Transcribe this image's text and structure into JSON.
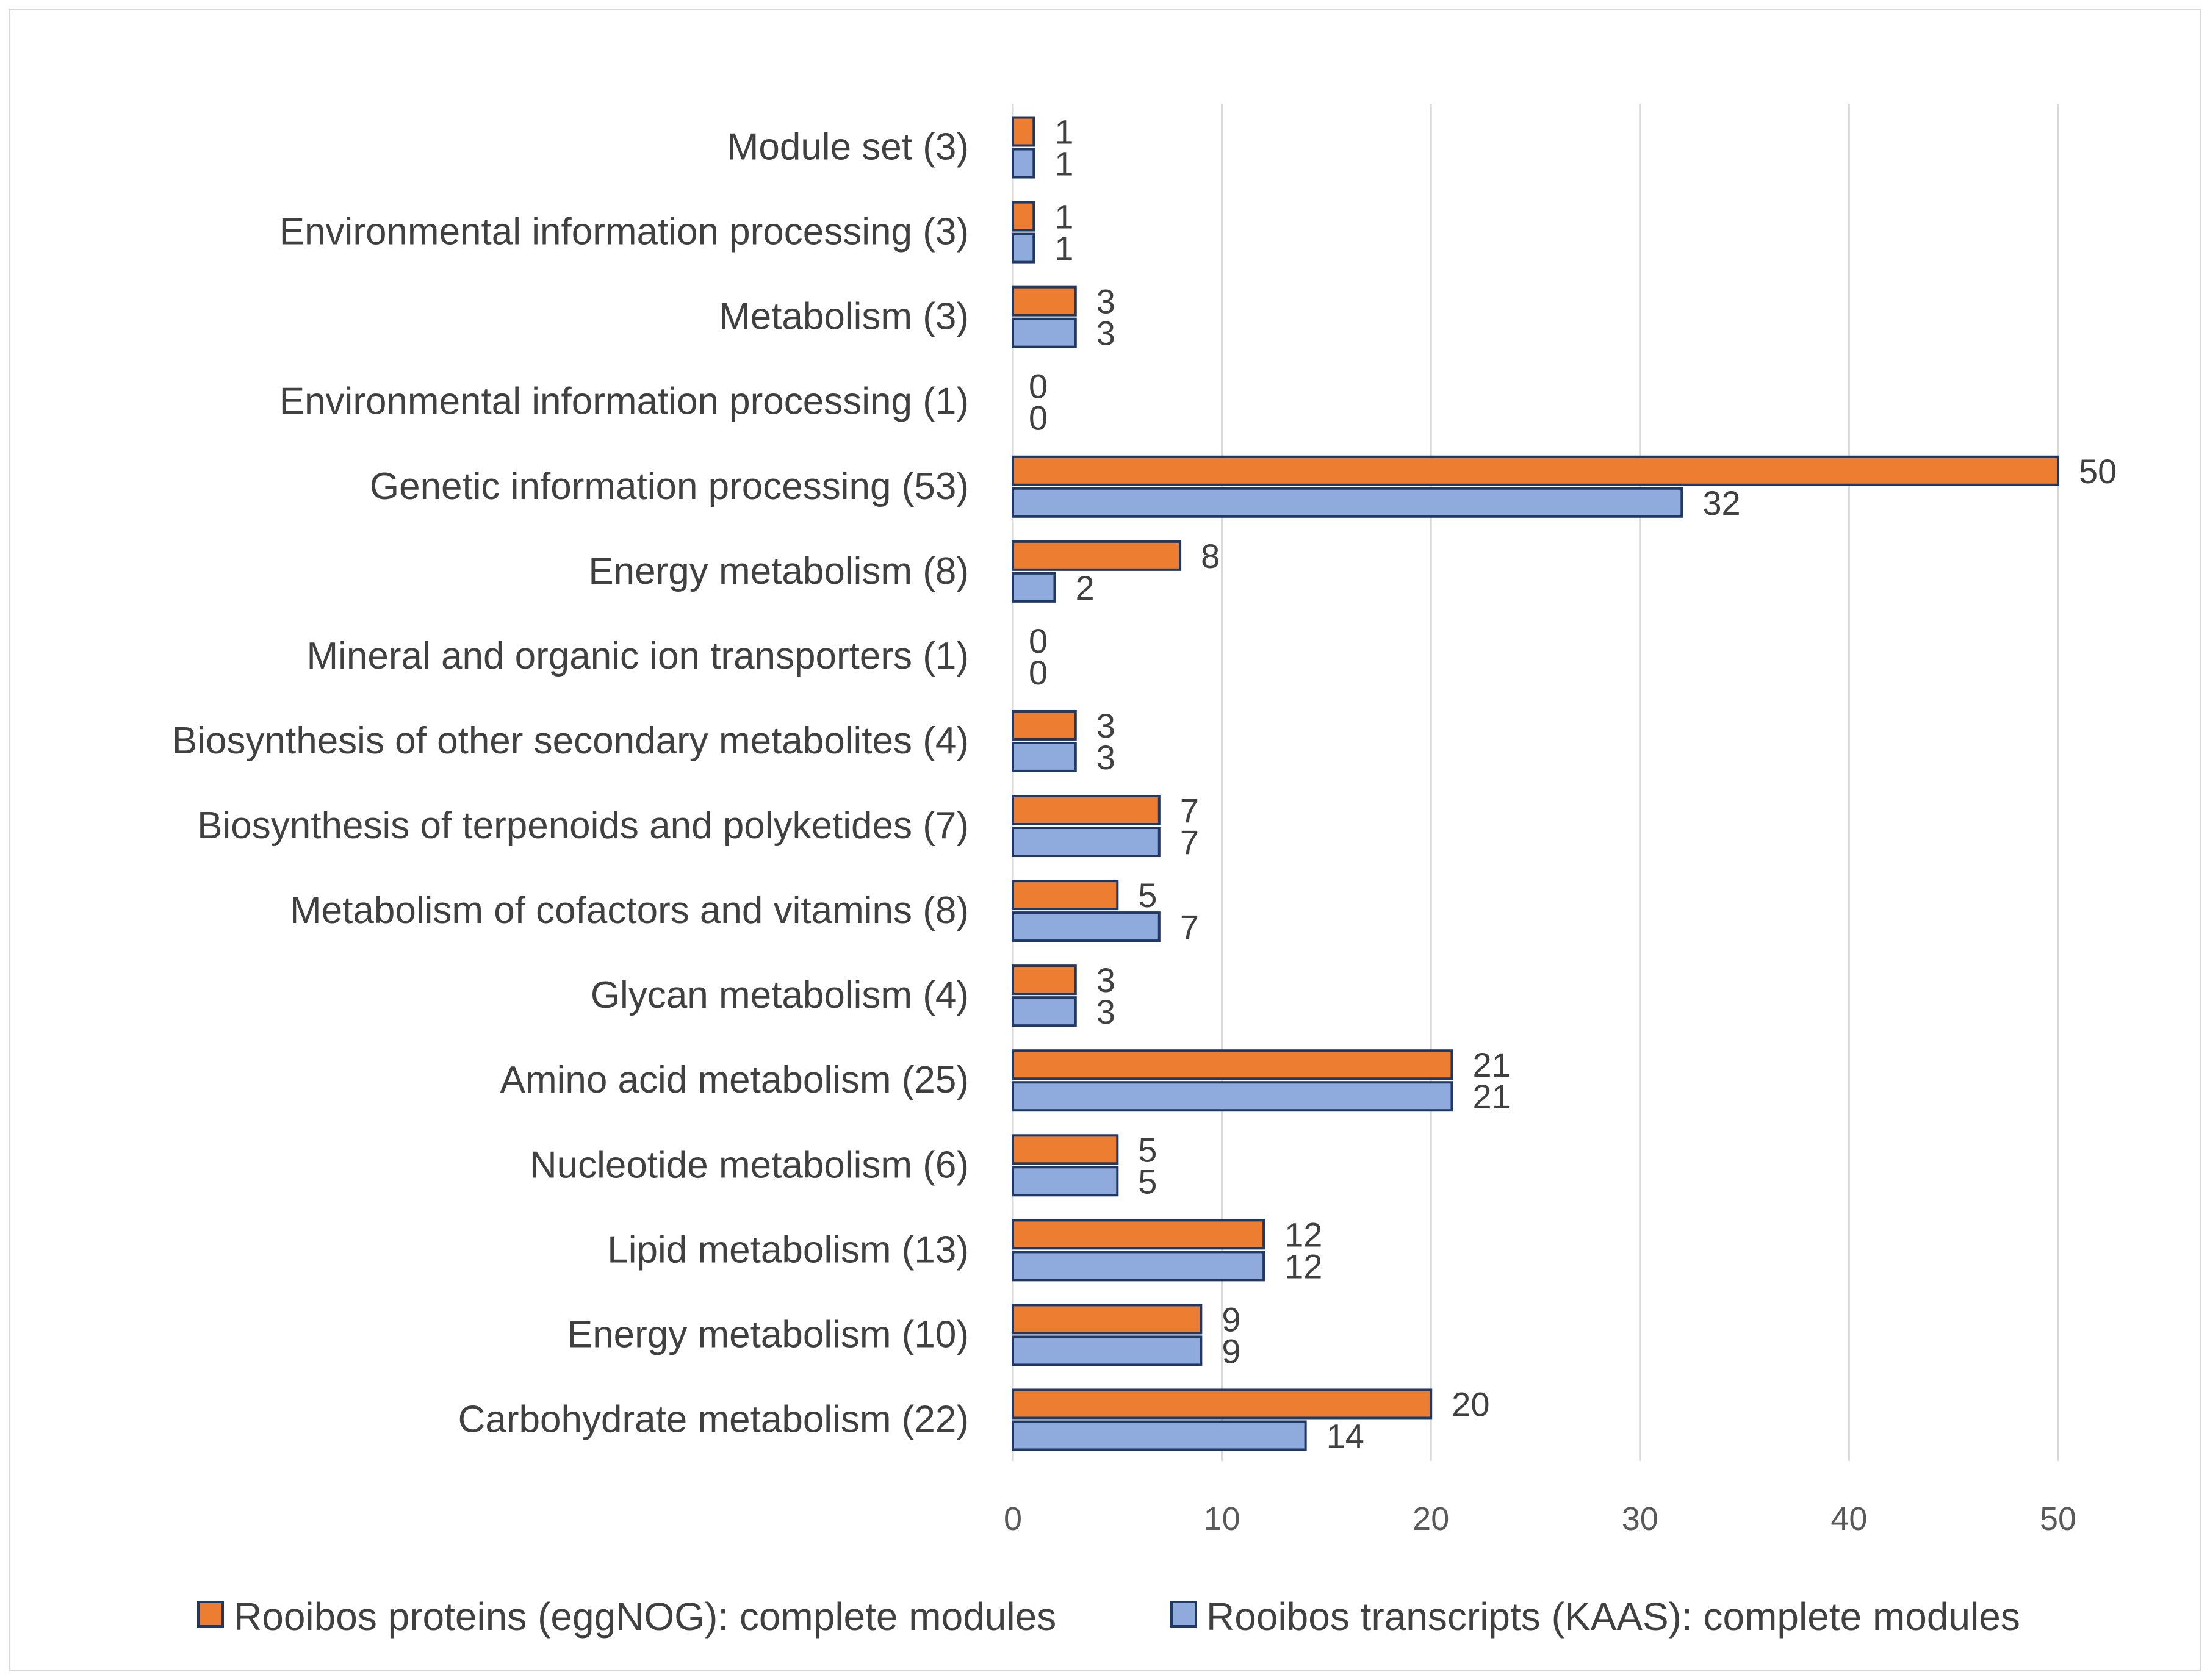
{
  "chart_data": {
    "type": "bar",
    "orientation": "horizontal",
    "title": "",
    "xlabel": "",
    "ylabel": "",
    "xlim": [
      0,
      50
    ],
    "x_ticks": [
      "0",
      "10",
      "20",
      "30",
      "40",
      "50"
    ],
    "grid": "vertical gridlines",
    "legend_position": "bottom",
    "categories": [
      "Module set (3)",
      "Environmental information processing (3)",
      "Metabolism (3)",
      "Environmental information processing (1)",
      "Genetic information processing (53)",
      "Energy metabolism (8)",
      "Mineral and organic ion transporters (1)",
      "Biosynthesis of other secondary metabolites (4)",
      "Biosynthesis of terpenoids and polyketides (7)",
      "Metabolism of cofactors and vitamins (8)",
      "Glycan metabolism (4)",
      "Amino acid metabolism (25)",
      "Nucleotide metabolism (6)",
      "Lipid metabolism (13)",
      "Energy metabolism (10)",
      "Carbohydrate metabolism (22)"
    ],
    "series": [
      {
        "name": "Rooibos proteins (eggNOG): complete modules",
        "color": "#ed7d31",
        "values": [
          1,
          1,
          3,
          0,
          50,
          8,
          0,
          3,
          7,
          5,
          3,
          21,
          5,
          12,
          9,
          20
        ]
      },
      {
        "name": "Rooibos transcripts (KAAS): complete modules",
        "color": "#8faadc",
        "values": [
          1,
          1,
          3,
          0,
          32,
          2,
          0,
          3,
          7,
          7,
          3,
          21,
          5,
          12,
          9,
          14
        ]
      }
    ],
    "bar_outline_color": "#203864",
    "gridline_color": "#d9d9d9"
  }
}
